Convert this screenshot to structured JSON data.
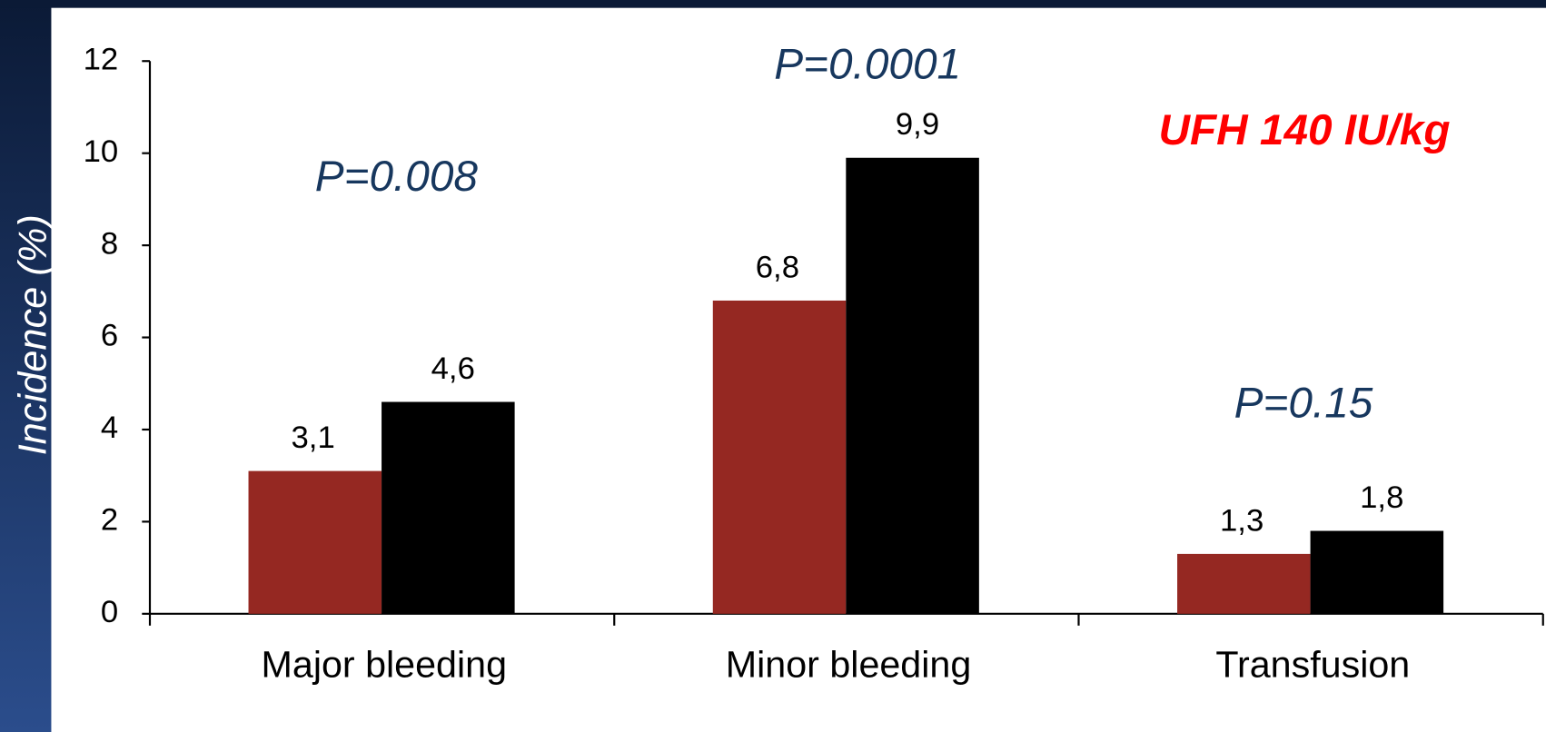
{
  "chart_data": {
    "type": "bar",
    "y_label": "Incidence (%)",
    "categories": [
      "Major bleeding",
      "Minor bleeding",
      "Transfusion"
    ],
    "series": [
      {
        "color": "#952822",
        "values": [
          3.1,
          6.8,
          1.3
        ],
        "value_labels": [
          "3,1",
          "6,8",
          "1,3"
        ]
      },
      {
        "color": "#000000",
        "values": [
          4.6,
          9.9,
          1.8
        ],
        "value_labels": [
          "4,6",
          "9,9",
          "1,8"
        ]
      }
    ],
    "ylim": [
      0,
      12
    ],
    "yticks": [
      0,
      2,
      4,
      6,
      8,
      10,
      12
    ],
    "annotations": [
      "P=0.008",
      "P=0.0001",
      "P=0.15",
      "UFH 140 IU/kg"
    ]
  }
}
